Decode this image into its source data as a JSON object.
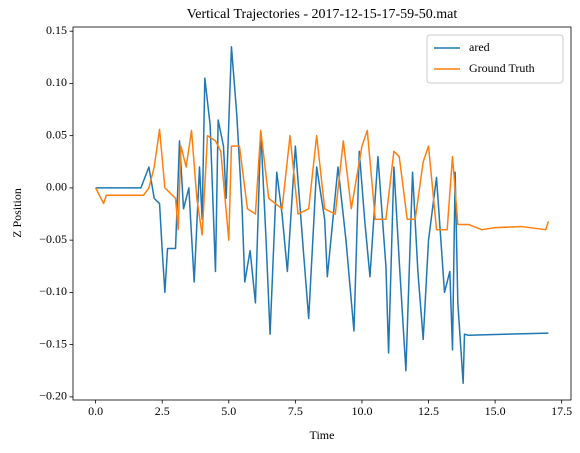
{
  "chart_data": {
    "type": "line",
    "title": "Vertical Trajectories - 2017-12-15-17-59-50.mat",
    "x_label": "Time",
    "y_label": "Z Position",
    "xlim": [
      -0.85,
      17.85
    ],
    "ylim": [
      -0.203,
      0.154
    ],
    "xticks": [
      {
        "value": 0,
        "label": "0.0"
      },
      {
        "value": 2.5,
        "label": "2.5"
      },
      {
        "value": 5,
        "label": "5.0"
      },
      {
        "value": 7.5,
        "label": "7.5"
      },
      {
        "value": 10,
        "label": "10.0"
      },
      {
        "value": 12.5,
        "label": "12.5"
      },
      {
        "value": 15,
        "label": "15.0"
      },
      {
        "value": 17.5,
        "label": "17.5"
      }
    ],
    "yticks": [
      {
        "value": 0.15,
        "label": "0.15"
      },
      {
        "value": 0.1,
        "label": "0.10"
      },
      {
        "value": 0.05,
        "label": "0.05"
      },
      {
        "value": 0,
        "label": "0.00"
      },
      {
        "value": -0.05,
        "label": "−0.05"
      },
      {
        "value": -0.1,
        "label": "−0.10"
      },
      {
        "value": -0.15,
        "label": "−0.15"
      },
      {
        "value": -0.2,
        "label": "−0.20"
      }
    ],
    "grid": false,
    "legend": "upper right",
    "series": [
      {
        "name": "ared",
        "color": "#1f77b4",
        "x": [
          0,
          1.7,
          2.0,
          2.2,
          2.4,
          2.5,
          2.6,
          2.7,
          3.0,
          3.15,
          3.3,
          3.5,
          3.7,
          3.9,
          4.0,
          4.1,
          4.3,
          4.5,
          4.6,
          4.8,
          4.9,
          5.1,
          5.3,
          5.5,
          5.6,
          5.8,
          6.0,
          6.2,
          6.4,
          6.55,
          6.8,
          7.0,
          7.2,
          7.5,
          7.8,
          8.0,
          8.3,
          8.6,
          8.7,
          9.1,
          9.4,
          9.7,
          9.9,
          10.1,
          10.3,
          10.6,
          10.9,
          11.0,
          11.2,
          11.4,
          11.65,
          11.9,
          12.1,
          12.3,
          12.5,
          12.8,
          13.1,
          13.3,
          13.4,
          13.5,
          13.6,
          13.8,
          13.85,
          14.0,
          17.0
        ],
        "values": [
          0,
          0,
          0.02,
          -0.01,
          -0.015,
          -0.06,
          -0.1,
          -0.058,
          -0.058,
          0.045,
          -0.02,
          0.0,
          -0.09,
          0.02,
          -0.03,
          0.105,
          0.06,
          -0.08,
          0.065,
          0.04,
          -0.01,
          0.135,
          0.07,
          -0.02,
          -0.09,
          -0.06,
          -0.11,
          0.055,
          -0.05,
          -0.14,
          0.015,
          -0.025,
          -0.08,
          0.04,
          -0.06,
          -0.125,
          0.02,
          -0.03,
          -0.085,
          0.02,
          -0.05,
          -0.137,
          0.035,
          -0.03,
          -0.085,
          0.03,
          -0.075,
          -0.158,
          0.02,
          -0.07,
          -0.175,
          0.015,
          -0.08,
          -0.145,
          -0.05,
          0.01,
          -0.1,
          -0.08,
          -0.155,
          0.015,
          -0.11,
          -0.187,
          -0.14,
          -0.141,
          -0.139
        ]
      },
      {
        "name": "Ground Truth",
        "color": "#ff7f0e",
        "x": [
          0,
          0.3,
          0.4,
          1.8,
          2.0,
          2.2,
          2.4,
          2.6,
          3.0,
          3.1,
          3.2,
          3.4,
          3.6,
          3.8,
          4.0,
          4.2,
          4.5,
          4.7,
          5.0,
          5.1,
          5.4,
          5.7,
          6.0,
          6.2,
          6.5,
          7.0,
          7.3,
          7.6,
          8.0,
          8.3,
          8.6,
          9.0,
          9.3,
          9.6,
          10.0,
          10.2,
          10.5,
          10.9,
          11.2,
          11.4,
          11.7,
          12.0,
          12.3,
          12.5,
          12.8,
          13.2,
          13.4,
          13.6,
          14.0,
          14.5,
          15.0,
          16.0,
          16.9,
          17.0
        ],
        "values": [
          0,
          -0.015,
          -0.007,
          -0.007,
          0.0,
          0.02,
          0.056,
          0.0,
          -0.01,
          -0.04,
          0.04,
          0.02,
          0.055,
          -0.01,
          -0.045,
          0.05,
          0.045,
          0.035,
          -0.05,
          0.04,
          0.04,
          -0.02,
          -0.025,
          0.055,
          -0.01,
          -0.02,
          0.05,
          -0.025,
          -0.02,
          0.05,
          -0.02,
          -0.025,
          0.045,
          -0.02,
          0.04,
          0.055,
          -0.03,
          -0.03,
          0.035,
          0.03,
          -0.03,
          -0.03,
          0.025,
          0.04,
          -0.04,
          -0.04,
          0.03,
          -0.035,
          -0.035,
          -0.04,
          -0.038,
          -0.037,
          -0.04,
          -0.032
        ]
      }
    ]
  }
}
